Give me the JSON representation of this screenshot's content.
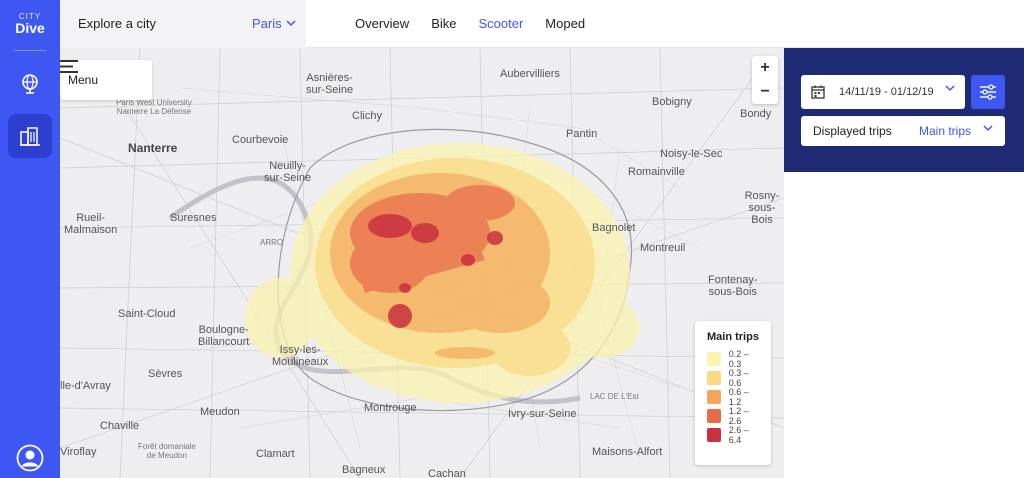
{
  "app": {
    "logo_small": "CITY",
    "logo_big": "Dive"
  },
  "topbar": {
    "explore_label": "Explore a city",
    "city": "Paris",
    "tabs": [
      {
        "label": "Overview",
        "active": false
      },
      {
        "label": "Bike",
        "active": false
      },
      {
        "label": "Scooter",
        "active": true
      },
      {
        "label": "Moped",
        "active": false
      }
    ]
  },
  "map": {
    "menu_label": "Menu",
    "zoom_in": "+",
    "zoom_out": "−",
    "places": {
      "asnieres": "Asnières-\nsur-Seine",
      "aubervilliers": "Aubervilliers",
      "bobigny": "Bobigny",
      "bondy": "Bondy",
      "nanterre": "Nanterre",
      "courbevoie": "Courbevoie",
      "clichy": "Clichy",
      "pantin": "Pantin",
      "noisy": "Noisy-le-Sec",
      "romainville": "Romainville",
      "neuilly": "Neuilly-\nsur-Seine",
      "rosny": "Rosny-\nsous-Bois",
      "rueil": "Rueil-\nMalmaison",
      "suresnes": "Suresnes",
      "bagnolet": "Bagnolet",
      "montreuil": "Montreuil",
      "fontenay": "Fontenay-\nsous-Bois",
      "saintcloud": "Saint-Cloud",
      "boulogne": "Boulogne-\nBillancourt",
      "issy": "Issy-les-\nMoulineaux",
      "ville_avray": "lle-d'Avray",
      "sevres": "Sèvres",
      "meudon": "Meudon",
      "montrouge": "Montrouge",
      "ivry": "Ivry-sur-Seine",
      "chaville": "Chaville",
      "viroflay": "Viroflay",
      "foret": "Forêt domaniale\nde Meudon",
      "clamart": "Clamart",
      "bagneux": "Bagneux",
      "cachan": "Cachan",
      "maisons": "Maisons-Alfort",
      "univ": "Paris West University\nNanterre La Défense",
      "arpajon": "ARRO",
      "lest": "LAC DE L'Est"
    },
    "legend": {
      "title": "Main trips",
      "items": [
        {
          "label": "0.2 – 0.3",
          "color": "#fbf3b0"
        },
        {
          "label": "0.3 – 0.6",
          "color": "#f9d982"
        },
        {
          "label": "0.6 – 1.2",
          "color": "#f3a65a"
        },
        {
          "label": "1.2 – 2.6",
          "color": "#ea6a4c"
        },
        {
          "label": "2.6 – 6.4",
          "color": "#c8313f"
        }
      ]
    }
  },
  "panel": {
    "date_range": "14/11/19 - 01/12/19",
    "displayed_trips_label": "Displayed trips",
    "displayed_trips_value": "Main trips"
  },
  "colors": {
    "accent": "#3f57f2",
    "panel_dark": "#1f2a74"
  }
}
